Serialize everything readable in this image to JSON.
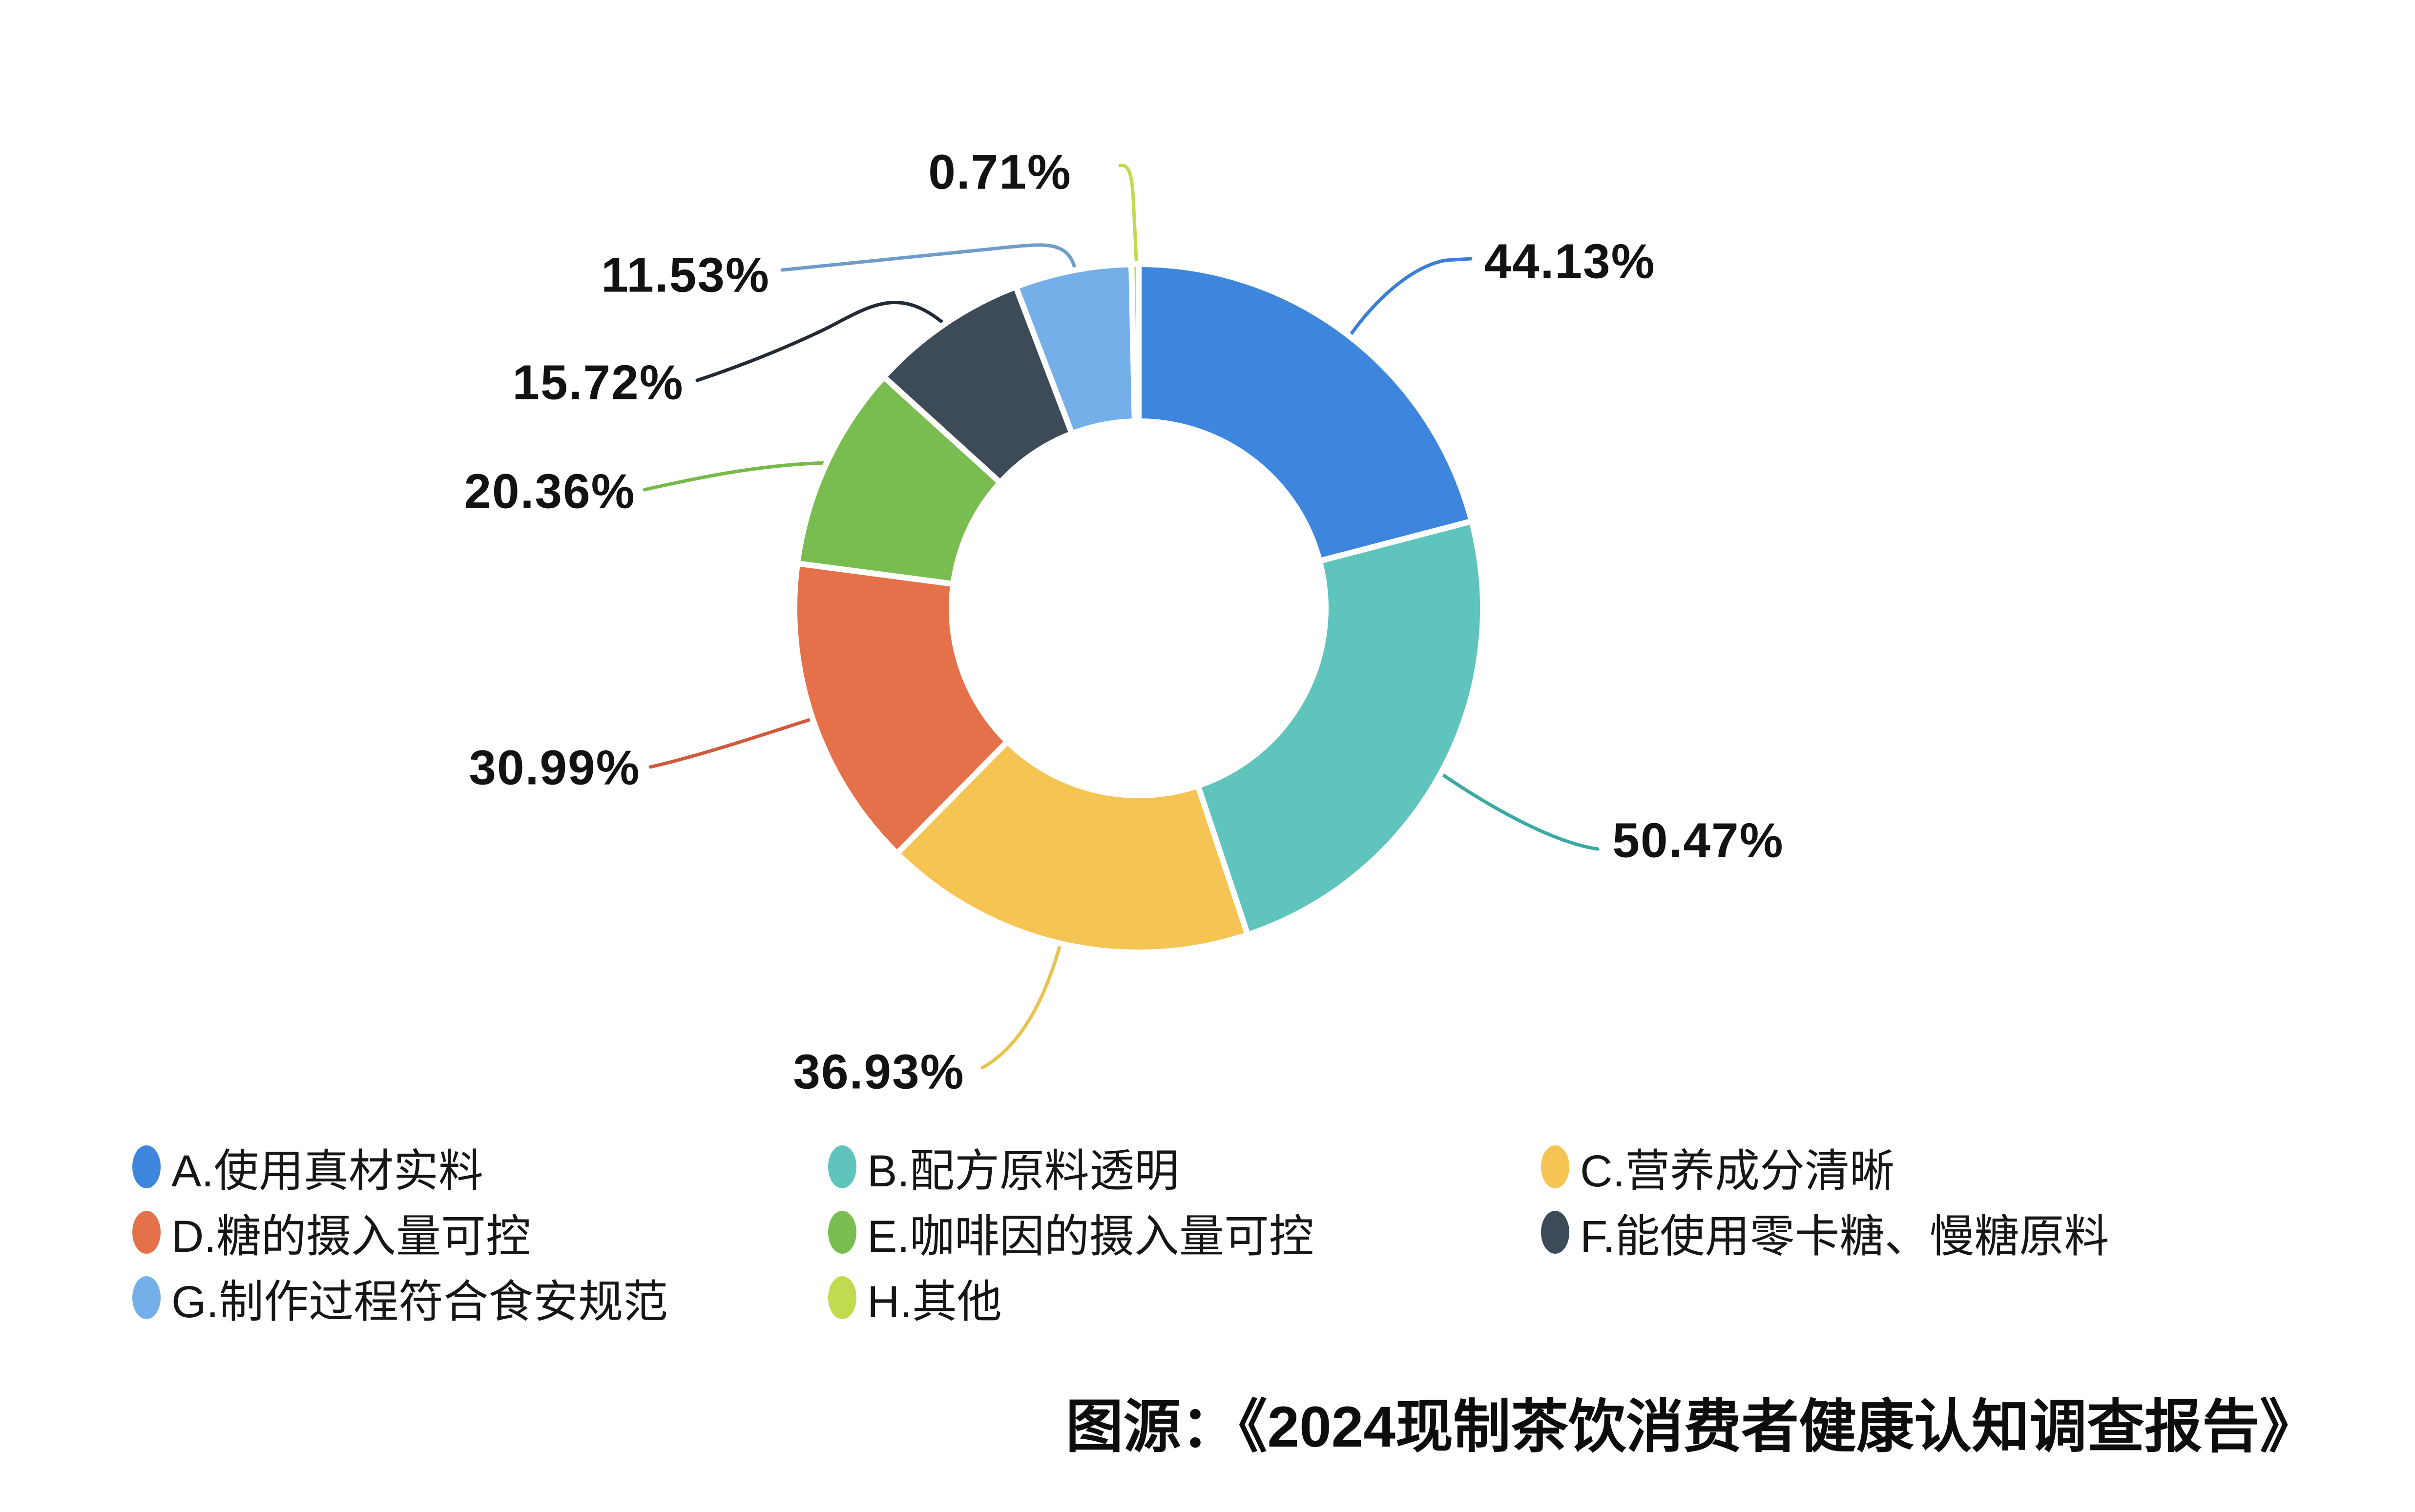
{
  "chart_data": {
    "type": "pie",
    "donut": true,
    "donut_hole_ratio": 0.54,
    "background": "#ffffff",
    "legend_position": "bottom",
    "unit": "%",
    "slices": [
      {
        "id": "A",
        "legend_label": "A.使用真材实料",
        "value": 44.13,
        "pct_label": "44.13%",
        "color": "#3e86dd",
        "line_color": "#3b7fd4"
      },
      {
        "id": "B",
        "legend_label": "B.配方原料透明",
        "value": 50.47,
        "pct_label": "50.47%",
        "color": "#5fc4bb",
        "line_color": "#3aa9a2"
      },
      {
        "id": "C",
        "legend_label": "C.营养成分清晰",
        "value": 36.93,
        "pct_label": "36.93%",
        "color": "#f6c452",
        "line_color": "#e7c350"
      },
      {
        "id": "D",
        "legend_label": "D.糖的摄入量可控",
        "value": 30.99,
        "pct_label": "30.99%",
        "color": "#e5714b",
        "line_color": "#cf5a3d"
      },
      {
        "id": "E",
        "legend_label": "E.咖啡因的摄入量可控",
        "value": 20.36,
        "pct_label": "20.36%",
        "color": "#79bd50",
        "line_color": "#79b94a"
      },
      {
        "id": "F",
        "legend_label": "F.能使用零卡糖、慢糖原料",
        "value": 15.72,
        "pct_label": "15.72%",
        "color": "#3d4b59",
        "line_color": "#222b33"
      },
      {
        "id": "G",
        "legend_label": "G.制作过程符合食安规范",
        "value": 11.53,
        "pct_label": "11.53%",
        "color": "#74afe9",
        "line_color": "#6f9cc8"
      },
      {
        "id": "H",
        "legend_label": "H.其他",
        "value": 0.71,
        "pct_label": "0.71%",
        "color": "#bfdb4e",
        "line_color": "#c3d94e"
      }
    ]
  },
  "footer": {
    "source_text": "图源：《2024现制茶饮消费者健康认知调查报告》"
  }
}
